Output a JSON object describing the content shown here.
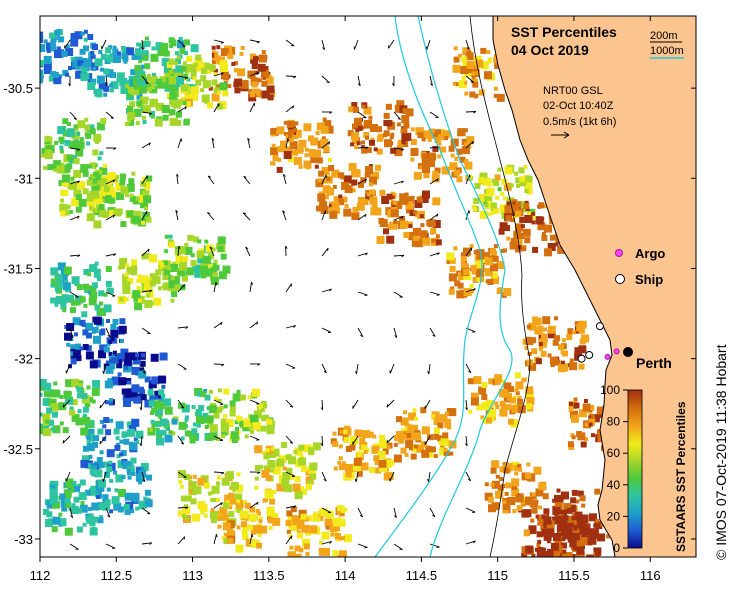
{
  "title": {
    "line1": "SST Percentiles",
    "line2": "04 Oct 2019"
  },
  "isobaths": [
    {
      "label": "200m",
      "color": "#000000"
    },
    {
      "label": "1000m",
      "color": "#1ecadb"
    }
  ],
  "current": {
    "source": "NRT00 GSL",
    "time": "02-Oct 10:40Z",
    "scale": "0.5m/s (1kt 6h)"
  },
  "legend": {
    "argo": "Argo",
    "ship": "Ship"
  },
  "city": "Perth",
  "colorbar": {
    "title": "SSTAARS SST Percentiles",
    "ticks": [
      "0",
      "20",
      "40",
      "60",
      "80",
      "100"
    ],
    "colors": [
      "#0a0a8c",
      "#1e5ad2",
      "#1fa0c8",
      "#2ec4a0",
      "#4ec93a",
      "#a6d628",
      "#f2ea1a",
      "#f2a51a",
      "#d4700e",
      "#a03010"
    ]
  },
  "credit": "© IMOS 07-Oct-2019 11:38 Hobart",
  "chart_data": {
    "type": "map",
    "x_ticks": [
      "112",
      "112.5",
      "113",
      "113.5",
      "114",
      "114.5",
      "115",
      "115.5",
      "116"
    ],
    "y_ticks": [
      "-30.5",
      "-31",
      "-31.5",
      "-32",
      "-32.5",
      "-33"
    ],
    "xlim": [
      112,
      116.3
    ],
    "ylim": [
      -33.1,
      -30.1
    ],
    "patches": [
      {
        "lon": 112.15,
        "lat": -30.3,
        "pct": 22
      },
      {
        "lon": 112.45,
        "lat": -30.4,
        "pct": 28
      },
      {
        "lon": 112.8,
        "lat": -30.35,
        "pct": 38
      },
      {
        "lon": 113.3,
        "lat": -30.4,
        "pct": 86
      },
      {
        "lon": 112.2,
        "lat": -30.8,
        "pct": 45
      },
      {
        "lon": 112.3,
        "lat": -31.05,
        "pct": 55
      },
      {
        "lon": 112.5,
        "lat": -31.1,
        "pct": 52
      },
      {
        "lon": 112.7,
        "lat": -31.55,
        "pct": 58
      },
      {
        "lon": 113.0,
        "lat": -31.45,
        "pct": 50
      },
      {
        "lon": 112.25,
        "lat": -31.6,
        "pct": 38
      },
      {
        "lon": 112.35,
        "lat": -31.9,
        "pct": 15
      },
      {
        "lon": 112.6,
        "lat": -32.1,
        "pct": 12
      },
      {
        "lon": 112.45,
        "lat": -32.45,
        "pct": 25
      },
      {
        "lon": 112.9,
        "lat": -32.3,
        "pct": 40
      },
      {
        "lon": 112.2,
        "lat": -32.8,
        "pct": 35
      },
      {
        "lon": 112.5,
        "lat": -32.7,
        "pct": 30
      },
      {
        "lon": 112.15,
        "lat": -32.25,
        "pct": 42
      },
      {
        "lon": 113.1,
        "lat": -32.75,
        "pct": 65
      },
      {
        "lon": 113.35,
        "lat": -32.9,
        "pct": 70
      },
      {
        "lon": 113.6,
        "lat": -32.6,
        "pct": 62
      },
      {
        "lon": 113.8,
        "lat": -32.95,
        "pct": 72
      },
      {
        "lon": 113.3,
        "lat": -32.3,
        "pct": 55
      },
      {
        "lon": 114.1,
        "lat": -32.5,
        "pct": 74
      },
      {
        "lon": 114.5,
        "lat": -32.4,
        "pct": 78
      },
      {
        "lon": 114.0,
        "lat": -31.05,
        "pct": 82
      },
      {
        "lon": 114.4,
        "lat": -31.2,
        "pct": 84
      },
      {
        "lon": 114.6,
        "lat": -30.85,
        "pct": 80
      },
      {
        "lon": 114.2,
        "lat": -30.7,
        "pct": 86
      },
      {
        "lon": 114.85,
        "lat": -31.5,
        "pct": 78
      },
      {
        "lon": 115.0,
        "lat": -31.05,
        "pct": 60
      },
      {
        "lon": 115.2,
        "lat": -31.25,
        "pct": 90
      },
      {
        "lon": 115.35,
        "lat": -31.9,
        "pct": 82
      },
      {
        "lon": 115.0,
        "lat": -32.2,
        "pct": 74
      },
      {
        "lon": 113.7,
        "lat": -30.8,
        "pct": 80
      },
      {
        "lon": 114.9,
        "lat": -30.4,
        "pct": 76
      },
      {
        "lon": 115.1,
        "lat": -32.7,
        "pct": 80
      },
      {
        "lon": 115.35,
        "lat": -32.95,
        "pct": 90
      },
      {
        "lon": 115.55,
        "lat": -32.85,
        "pct": 94
      },
      {
        "lon": 115.45,
        "lat": -33.0,
        "pct": 96
      },
      {
        "lon": 115.65,
        "lat": -32.35,
        "pct": 86
      },
      {
        "lon": 113.0,
        "lat": -30.45,
        "pct": 60
      },
      {
        "lon": 112.75,
        "lat": -30.55,
        "pct": 48
      }
    ],
    "argo_floats": [
      {
        "lon": 115.78,
        "lat": -31.96
      },
      {
        "lon": 115.72,
        "lat": -31.99
      }
    ],
    "ships": [
      {
        "lon": 115.55,
        "lat": -32.0
      },
      {
        "lon": 115.6,
        "lat": -31.98
      },
      {
        "lon": 115.67,
        "lat": -31.82
      }
    ],
    "city_position": {
      "lon": 115.86,
      "lat": -31.95
    }
  }
}
